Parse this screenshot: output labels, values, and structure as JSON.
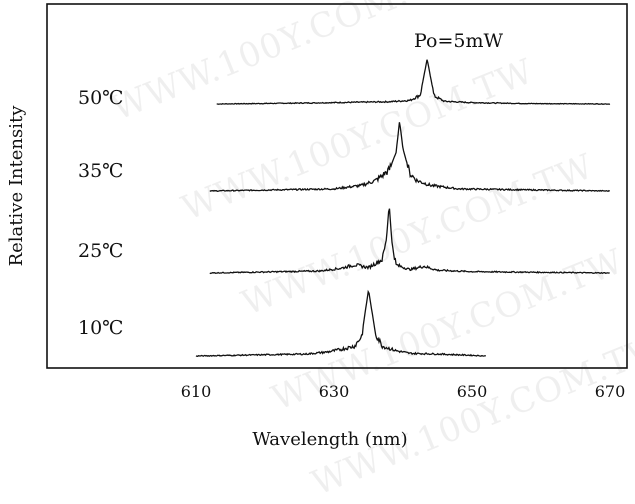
{
  "watermark": "WWW.100Y.COM.TW",
  "chart_data": {
    "type": "line",
    "title": "",
    "xlabel": "Wavelength (nm)",
    "ylabel": "Relative Intensity",
    "xlim": [
      598,
      672
    ],
    "x_ticks": [
      610,
      630,
      650,
      670
    ],
    "annotation": "Po=5mW",
    "grid": false,
    "legend": "none",
    "series": [
      {
        "name": "50℃",
        "peak_nm": 643.5,
        "points": [
          [
            613,
            0
          ],
          [
            625,
            0.02
          ],
          [
            634,
            0.04
          ],
          [
            638,
            0.05
          ],
          [
            641,
            0.08
          ],
          [
            642.5,
            0.2
          ],
          [
            643.5,
            1.0
          ],
          [
            644.5,
            0.18
          ],
          [
            646,
            0.06
          ],
          [
            650,
            0.03
          ],
          [
            658,
            0.01
          ],
          [
            670,
            0
          ]
        ]
      },
      {
        "name": "35℃",
        "peak_nm": 639.5,
        "points": [
          [
            612,
            0
          ],
          [
            630,
            0.03
          ],
          [
            634,
            0.08
          ],
          [
            636,
            0.15
          ],
          [
            637,
            0.22
          ],
          [
            638,
            0.3
          ],
          [
            639,
            0.55
          ],
          [
            639.5,
            1.0
          ],
          [
            640,
            0.6
          ],
          [
            641,
            0.25
          ],
          [
            642,
            0.15
          ],
          [
            644,
            0.08
          ],
          [
            648,
            0.03
          ],
          [
            670,
            0
          ]
        ]
      },
      {
        "name": "25℃",
        "peak_nm": 638,
        "points": [
          [
            612,
            0
          ],
          [
            628,
            0.03
          ],
          [
            631,
            0.07
          ],
          [
            633,
            0.12
          ],
          [
            635,
            0.08
          ],
          [
            637,
            0.2
          ],
          [
            637.6,
            0.5
          ],
          [
            638,
            1.0
          ],
          [
            638.4,
            0.45
          ],
          [
            639,
            0.12
          ],
          [
            641,
            0.05
          ],
          [
            643,
            0.1
          ],
          [
            645,
            0.04
          ],
          [
            650,
            0.02
          ],
          [
            670,
            0
          ]
        ]
      },
      {
        "name": "10℃",
        "peak_nm": 635,
        "points": [
          [
            610,
            0
          ],
          [
            626,
            0.03
          ],
          [
            629,
            0.06
          ],
          [
            631,
            0.1
          ],
          [
            633,
            0.15
          ],
          [
            634,
            0.3
          ],
          [
            635,
            1.0
          ],
          [
            636,
            0.35
          ],
          [
            637,
            0.15
          ],
          [
            639,
            0.08
          ],
          [
            641,
            0.04
          ],
          [
            645,
            0.03
          ],
          [
            650,
            0.01
          ],
          [
            652,
            0
          ]
        ]
      }
    ]
  }
}
